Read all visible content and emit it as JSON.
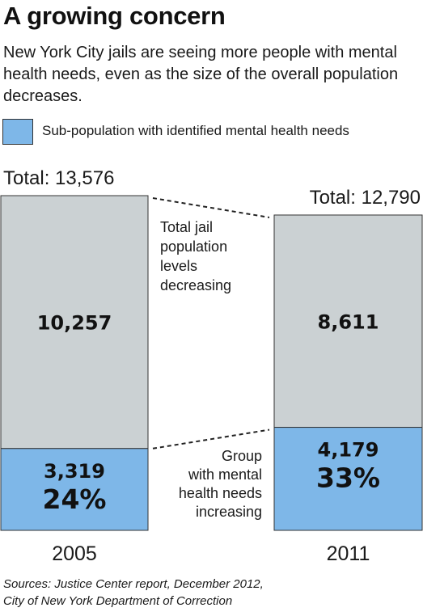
{
  "title": "A growing concern",
  "subtitle": "New York City jails are seeing more people with mental health needs, even as the size of the overall population decreases.",
  "legend": {
    "label": "Sub-population with identified mental health needs",
    "color": "#7eb7e8"
  },
  "annotations": {
    "top": [
      "Total jail",
      "population",
      "levels",
      "decreasing"
    ],
    "bottom": [
      "Group",
      "with mental",
      "health needs",
      "increasing"
    ]
  },
  "source": [
    "Sources: Justice Center report, December 2012,",
    "City of New York Department of Correction"
  ],
  "chart_data": {
    "type": "bar",
    "stacked": true,
    "categories": [
      "2005",
      "2011"
    ],
    "series": [
      {
        "name": "Sub-population with identified mental health needs",
        "values": [
          3319,
          4179
        ],
        "color": "#7eb7e8"
      },
      {
        "values": [
          10257,
          8611
        ],
        "color": "#cbd1d3"
      }
    ],
    "value_labels": [
      {
        "year": "2005",
        "total": "Total: 13,576",
        "other": "10,257",
        "mental": "3,319",
        "pct": "24%"
      },
      {
        "year": "2011",
        "total": "Total: 12,790",
        "other": "8,611",
        "mental": "4,179",
        "pct": "33%"
      }
    ],
    "ylim": [
      0,
      13576
    ]
  }
}
